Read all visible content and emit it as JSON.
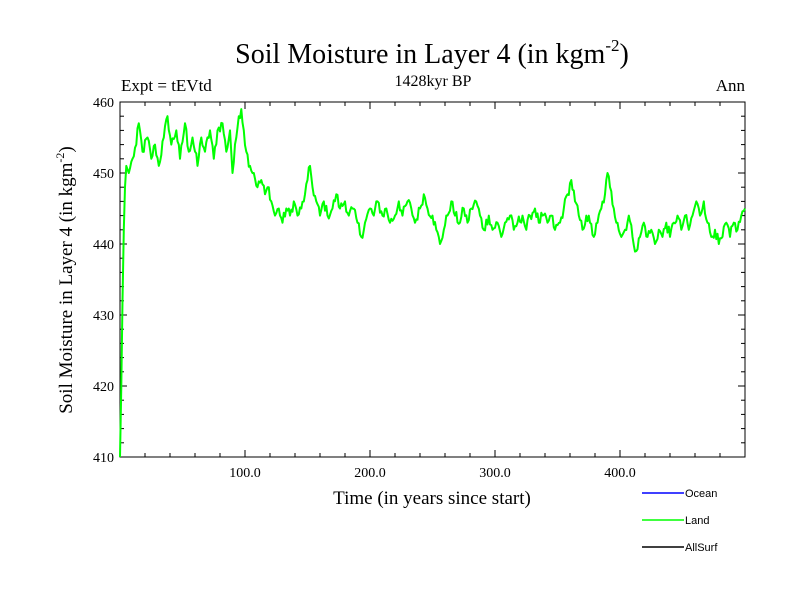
{
  "chart_data": {
    "type": "line",
    "title_main": "Soil Moisture in Layer 4 (in kgm",
    "title_sup": "-2",
    "title_close": ")",
    "subtitle_left": "Expt = tEVtd",
    "subtitle_center": "1428kyr BP",
    "subtitle_right": "Ann",
    "xlabel": "Time (in years since start)",
    "ylabel_main": "Soil Moisture in Layer 4 (in kgm",
    "ylabel_sup": "-2",
    "ylabel_close": ")",
    "xlim": [
      0,
      500
    ],
    "ylim": [
      410,
      460
    ],
    "x_major_ticks": [
      100,
      200,
      300,
      400
    ],
    "x_tick_labels": [
      "100.0",
      "200.0",
      "300.0",
      "400.0"
    ],
    "y_major_ticks": [
      410,
      420,
      430,
      440,
      450,
      460
    ],
    "y_tick_labels": [
      "410",
      "420",
      "430",
      "440",
      "450",
      "460"
    ],
    "legend": [
      {
        "name": "Ocean",
        "color": "#0000ff"
      },
      {
        "name": "Land",
        "color": "#00ff00"
      },
      {
        "name": "AllSurf",
        "color": "#000000"
      }
    ],
    "series": [
      {
        "name": "Land",
        "color": "#00ff00",
        "anchors": [
          [
            0,
            410
          ],
          [
            1,
            420
          ],
          [
            2,
            432
          ],
          [
            3,
            442
          ],
          [
            4,
            448
          ],
          [
            5,
            451
          ],
          [
            7,
            450
          ],
          [
            10,
            452
          ],
          [
            13,
            454
          ],
          [
            15,
            457
          ],
          [
            18,
            453
          ],
          [
            22,
            455
          ],
          [
            25,
            452
          ],
          [
            28,
            454
          ],
          [
            31,
            451
          ],
          [
            35,
            455
          ],
          [
            38,
            458
          ],
          [
            41,
            454
          ],
          [
            45,
            456
          ],
          [
            48,
            452
          ],
          [
            52,
            457
          ],
          [
            55,
            453
          ],
          [
            58,
            455
          ],
          [
            62,
            451
          ],
          [
            65,
            455
          ],
          [
            68,
            453
          ],
          [
            72,
            456
          ],
          [
            75,
            452
          ],
          [
            78,
            456
          ],
          [
            82,
            457
          ],
          [
            85,
            453
          ],
          [
            88,
            456
          ],
          [
            90,
            450
          ],
          [
            93,
            455
          ],
          [
            95,
            458
          ],
          [
            97,
            459
          ],
          [
            99,
            456
          ],
          [
            101,
            453
          ],
          [
            104,
            451
          ],
          [
            107,
            450
          ],
          [
            110,
            448
          ],
          [
            113,
            449
          ],
          [
            116,
            447
          ],
          [
            119,
            448
          ],
          [
            121,
            446
          ],
          [
            124,
            444
          ],
          [
            127,
            445
          ],
          [
            130,
            443
          ],
          [
            133,
            445
          ],
          [
            136,
            444
          ],
          [
            139,
            446
          ],
          [
            142,
            444
          ],
          [
            145,
            445
          ],
          [
            148,
            447
          ],
          [
            150,
            449
          ],
          [
            152,
            451
          ],
          [
            154,
            448
          ],
          [
            157,
            446
          ],
          [
            160,
            444
          ],
          [
            163,
            446
          ],
          [
            166,
            444
          ],
          [
            170,
            445
          ],
          [
            173,
            447
          ],
          [
            176,
            445
          ],
          [
            180,
            446
          ],
          [
            183,
            444
          ],
          [
            186,
            445
          ],
          [
            190,
            443
          ],
          [
            193,
            441
          ],
          [
            196,
            443
          ],
          [
            200,
            445
          ],
          [
            203,
            444
          ],
          [
            206,
            446
          ],
          [
            210,
            444
          ],
          [
            213,
            445
          ],
          [
            216,
            443
          ],
          [
            220,
            444
          ],
          [
            223,
            446
          ],
          [
            226,
            444
          ],
          [
            230,
            446
          ],
          [
            233,
            445
          ],
          [
            236,
            443
          ],
          [
            240,
            445
          ],
          [
            243,
            447
          ],
          [
            246,
            445
          ],
          [
            250,
            444
          ],
          [
            253,
            442
          ],
          [
            256,
            440
          ],
          [
            259,
            442
          ],
          [
            262,
            444
          ],
          [
            265,
            446
          ],
          [
            268,
            444
          ],
          [
            272,
            443
          ],
          [
            275,
            445
          ],
          [
            278,
            443
          ],
          [
            281,
            445
          ],
          [
            285,
            446
          ],
          [
            288,
            444
          ],
          [
            291,
            442
          ],
          [
            295,
            444
          ],
          [
            298,
            442
          ],
          [
            302,
            443
          ],
          [
            305,
            441
          ],
          [
            308,
            443
          ],
          [
            312,
            444
          ],
          [
            315,
            442
          ],
          [
            318,
            443
          ],
          [
            322,
            444
          ],
          [
            325,
            442
          ],
          [
            328,
            444
          ],
          [
            332,
            445
          ],
          [
            335,
            443
          ],
          [
            338,
            444
          ],
          [
            342,
            443
          ],
          [
            345,
            444
          ],
          [
            348,
            442
          ],
          [
            352,
            443
          ],
          [
            355,
            445
          ],
          [
            358,
            447
          ],
          [
            361,
            449
          ],
          [
            364,
            446
          ],
          [
            367,
            444
          ],
          [
            370,
            442
          ],
          [
            373,
            444
          ],
          [
            376,
            443
          ],
          [
            379,
            441
          ],
          [
            382,
            443
          ],
          [
            385,
            445
          ],
          [
            388,
            447
          ],
          [
            390,
            450
          ],
          [
            392,
            448
          ],
          [
            395,
            445
          ],
          [
            398,
            443
          ],
          [
            401,
            441
          ],
          [
            404,
            442
          ],
          [
            407,
            444
          ],
          [
            410,
            441
          ],
          [
            413,
            439
          ],
          [
            416,
            441
          ],
          [
            419,
            443
          ],
          [
            422,
            441
          ],
          [
            425,
            442
          ],
          [
            428,
            440
          ],
          [
            431,
            442
          ],
          [
            434,
            441
          ],
          [
            437,
            443
          ],
          [
            440,
            441
          ],
          [
            443,
            443
          ],
          [
            446,
            444
          ],
          [
            449,
            442
          ],
          [
            452,
            444
          ],
          [
            455,
            442
          ],
          [
            458,
            444
          ],
          [
            461,
            446
          ],
          [
            464,
            444
          ],
          [
            467,
            446
          ],
          [
            470,
            443
          ],
          [
            473,
            441
          ],
          [
            476,
            442
          ],
          [
            479,
            440
          ],
          [
            482,
            441
          ],
          [
            485,
            443
          ],
          [
            488,
            441
          ],
          [
            491,
            443
          ],
          [
            494,
            442
          ],
          [
            497,
            444
          ],
          [
            500,
            445
          ]
        ]
      }
    ]
  }
}
